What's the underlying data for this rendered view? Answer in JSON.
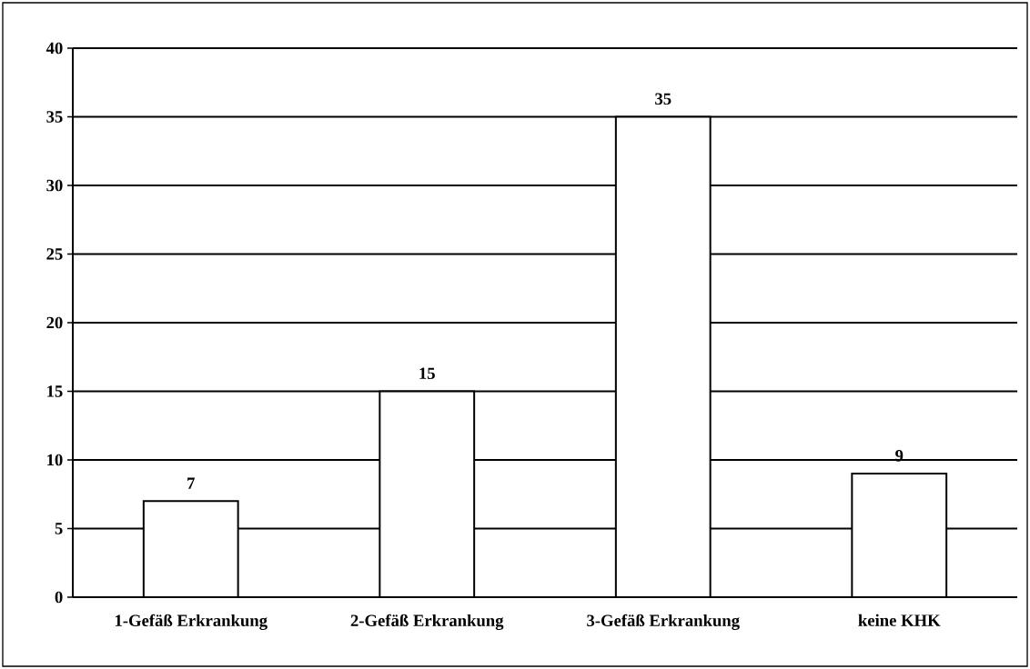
{
  "chart_data": {
    "type": "bar",
    "categories": [
      "1-Gefäß Erkrankung",
      "2-Gefäß Erkrankung",
      "3-Gefäß Erkrankung",
      "keine KHK"
    ],
    "values": [
      7,
      15,
      35,
      9
    ],
    "color": "#ffffff",
    "ylim": [
      0,
      40
    ],
    "yticks": [
      0,
      5,
      10,
      15,
      20,
      25,
      30,
      35,
      40
    ],
    "grid": "y",
    "data_labels": true
  }
}
